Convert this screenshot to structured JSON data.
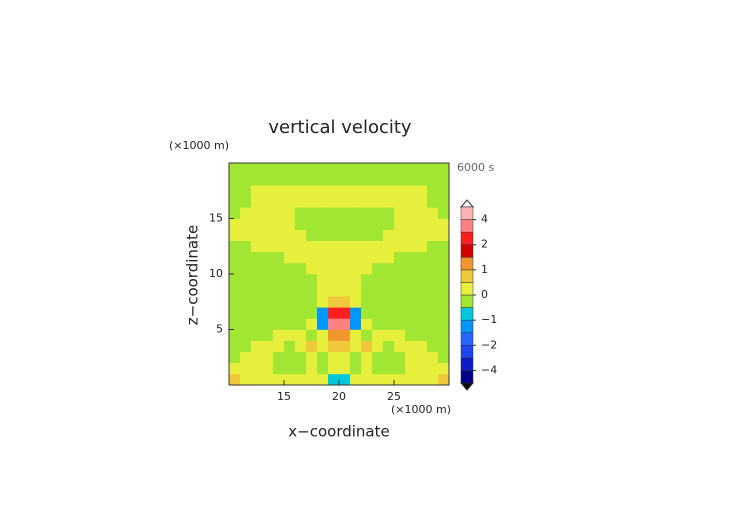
{
  "chart_data": {
    "type": "contour",
    "title": "vertical velocity",
    "annotation": "6000 s",
    "x_unit_label": "(×1000 m)",
    "y_unit_label": "(×1000 m)",
    "xlabel": "x−coordinate",
    "ylabel": "z−coordinate",
    "xlim": [
      10,
      30
    ],
    "ylim": [
      0,
      20
    ],
    "xticks": [
      15,
      20,
      25
    ],
    "yticks": [
      5,
      10,
      15
    ],
    "x": [
      10.5,
      11.5,
      12.5,
      13.5,
      14.5,
      15.5,
      16.5,
      17.5,
      18.5,
      19.5,
      20.5,
      21.5,
      22.5,
      23.5,
      24.5,
      25.5,
      26.5,
      27.5,
      28.5,
      29.5
    ],
    "y": [
      0.5,
      1.5,
      2.5,
      3.5,
      4.5,
      5.5,
      6.5,
      7.5,
      8.5,
      9.5,
      10.5,
      11.5,
      12.5,
      13.5,
      14.5,
      15.5,
      16.5,
      17.5,
      18.5,
      19.5
    ],
    "values": [
      [
        0.7,
        0.2,
        0.2,
        0.2,
        0.2,
        0.2,
        0.2,
        0.2,
        0.2,
        -0.7,
        -0.7,
        0.2,
        0.2,
        0.2,
        0.2,
        0.2,
        0.2,
        0.2,
        0.2,
        0.7
      ],
      [
        0.2,
        0.2,
        0.2,
        0.2,
        -0.2,
        -0.2,
        -0.2,
        0.2,
        -0.2,
        0.2,
        0.2,
        -0.2,
        0.2,
        -0.2,
        -0.2,
        -0.2,
        0.2,
        0.2,
        0.2,
        0.2
      ],
      [
        -0.2,
        0.2,
        0.2,
        0.2,
        -0.2,
        -0.2,
        -0.2,
        0.2,
        -0.2,
        0.2,
        0.2,
        -0.2,
        0.2,
        -0.2,
        -0.2,
        -0.2,
        0.2,
        0.2,
        0.2,
        -0.2
      ],
      [
        -0.2,
        -0.2,
        0.2,
        0.2,
        0.2,
        -0.2,
        0.2,
        0.7,
        0.2,
        0.7,
        0.7,
        0.2,
        0.7,
        0.2,
        -0.2,
        0.2,
        0.2,
        0.2,
        -0.2,
        -0.2
      ],
      [
        -0.2,
        -0.2,
        -0.2,
        -0.2,
        0.2,
        0.2,
        0.2,
        -0.2,
        0.2,
        1.2,
        1.2,
        0.2,
        -0.2,
        0.2,
        0.2,
        0.2,
        -0.2,
        -0.2,
        -0.2,
        -0.2
      ],
      [
        -0.2,
        -0.2,
        -0.2,
        -0.2,
        -0.2,
        -0.2,
        -0.2,
        0.2,
        -1.2,
        3.5,
        3.5,
        -1.2,
        0.2,
        -0.2,
        -0.2,
        -0.2,
        -0.2,
        -0.2,
        -0.2,
        -0.2
      ],
      [
        -0.2,
        -0.2,
        -0.2,
        -0.2,
        -0.2,
        -0.2,
        -0.2,
        -0.2,
        -1.2,
        2.5,
        2.5,
        -1.2,
        -0.2,
        -0.2,
        -0.2,
        -0.2,
        -0.2,
        -0.2,
        -0.2,
        -0.2
      ],
      [
        -0.2,
        -0.2,
        -0.2,
        -0.2,
        -0.2,
        -0.2,
        -0.2,
        -0.2,
        0.2,
        0.7,
        0.7,
        0.2,
        -0.2,
        -0.2,
        -0.2,
        -0.2,
        -0.2,
        -0.2,
        -0.2,
        -0.2
      ],
      [
        -0.2,
        -0.2,
        -0.2,
        -0.2,
        -0.2,
        -0.2,
        -0.2,
        -0.2,
        0.2,
        0.2,
        0.2,
        0.2,
        -0.2,
        -0.2,
        -0.2,
        -0.2,
        -0.2,
        -0.2,
        -0.2,
        -0.2
      ],
      [
        -0.2,
        -0.2,
        -0.2,
        -0.2,
        -0.2,
        -0.2,
        -0.2,
        -0.2,
        0.2,
        0.2,
        0.2,
        0.2,
        -0.2,
        -0.2,
        -0.2,
        -0.2,
        -0.2,
        -0.2,
        -0.2,
        -0.2
      ],
      [
        -0.2,
        -0.2,
        -0.2,
        -0.2,
        -0.2,
        -0.2,
        -0.2,
        0.2,
        0.2,
        0.2,
        0.2,
        0.2,
        0.2,
        -0.2,
        -0.2,
        -0.2,
        -0.2,
        -0.2,
        -0.2,
        -0.2
      ],
      [
        -0.2,
        -0.2,
        -0.2,
        -0.2,
        -0.2,
        0.2,
        0.2,
        0.2,
        0.2,
        0.2,
        0.2,
        0.2,
        0.2,
        0.2,
        0.2,
        -0.2,
        -0.2,
        -0.2,
        -0.2,
        -0.2
      ],
      [
        -0.2,
        -0.2,
        0.2,
        0.2,
        0.2,
        0.2,
        0.2,
        0.2,
        0.2,
        0.2,
        0.2,
        0.2,
        0.2,
        0.2,
        0.2,
        0.2,
        0.2,
        0.2,
        -0.2,
        -0.2
      ],
      [
        0.2,
        0.2,
        0.2,
        0.2,
        0.2,
        0.2,
        0.2,
        -0.2,
        -0.2,
        -0.2,
        -0.2,
        -0.2,
        -0.2,
        -0.2,
        0.2,
        0.2,
        0.2,
        0.2,
        0.2,
        0.2
      ],
      [
        0.2,
        0.2,
        0.2,
        0.2,
        0.2,
        0.2,
        -0.2,
        -0.2,
        -0.2,
        -0.2,
        -0.2,
        -0.2,
        -0.2,
        -0.2,
        -0.2,
        0.2,
        0.2,
        0.2,
        0.2,
        0.2
      ],
      [
        -0.2,
        0.2,
        0.2,
        0.2,
        0.2,
        0.2,
        -0.2,
        -0.2,
        -0.2,
        -0.2,
        -0.2,
        -0.2,
        -0.2,
        -0.2,
        -0.2,
        0.2,
        0.2,
        0.2,
        0.2,
        -0.2
      ],
      [
        -0.2,
        -0.2,
        0.2,
        0.2,
        0.2,
        0.2,
        0.2,
        0.2,
        0.2,
        0.2,
        0.2,
        0.2,
        0.2,
        0.2,
        0.2,
        0.2,
        0.2,
        0.2,
        -0.2,
        -0.2
      ],
      [
        -0.2,
        -0.2,
        0.2,
        0.2,
        0.2,
        0.2,
        0.2,
        0.2,
        0.2,
        0.2,
        0.2,
        0.2,
        0.2,
        0.2,
        0.2,
        0.2,
        0.2,
        0.2,
        -0.2,
        -0.2
      ],
      [
        -0.2,
        -0.2,
        -0.2,
        -0.2,
        -0.2,
        -0.2,
        -0.2,
        -0.2,
        -0.2,
        -0.2,
        -0.2,
        -0.2,
        -0.2,
        -0.2,
        -0.2,
        -0.2,
        -0.2,
        -0.2,
        -0.2,
        -0.2
      ],
      [
        -0.2,
        -0.2,
        -0.2,
        -0.2,
        -0.2,
        -0.2,
        -0.2,
        -0.2,
        -0.2,
        -0.2,
        -0.2,
        -0.2,
        -0.2,
        -0.2,
        -0.2,
        -0.2,
        -0.2,
        -0.2,
        -0.2,
        -0.2
      ]
    ],
    "levels": [
      -5,
      -4,
      -3,
      -2,
      -1.5,
      -1,
      -0.5,
      0,
      0.5,
      1,
      1.5,
      2,
      3,
      4,
      5
    ],
    "colors": [
      "#00008c",
      "#0a1ec8",
      "#1e46f0",
      "#2864ff",
      "#0096ff",
      "#00c8dc",
      "#a0e632",
      "#e6f03c",
      "#f0c83c",
      "#f0962d",
      "#d20000",
      "#ff1e1e",
      "#ff8282",
      "#ffb4b4"
    ],
    "colorbar_ticks": [
      {
        "value": 4,
        "label": "4"
      },
      {
        "value": 2,
        "label": "2"
      },
      {
        "value": 1,
        "label": "1"
      },
      {
        "value": 0,
        "label": "0"
      },
      {
        "value": -1,
        "label": "−1"
      },
      {
        "value": -2,
        "label": "−2"
      },
      {
        "value": -4,
        "label": "−4"
      }
    ]
  }
}
